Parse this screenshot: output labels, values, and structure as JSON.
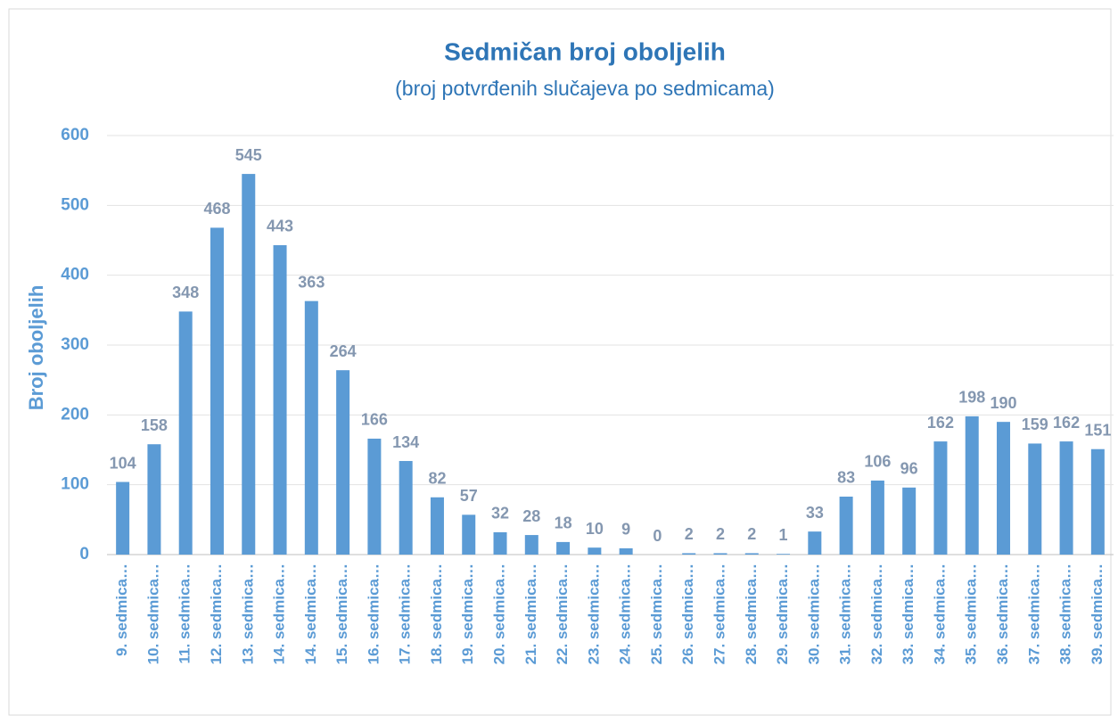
{
  "chart_data": {
    "type": "bar",
    "title": "Sedmičan broj oboljelih",
    "subtitle": "(broj potvrđenih slučajeva po sedmicama)",
    "y_label": "Broj oboljelih",
    "categories": [
      "9. sedmica…",
      "10. sedmica…",
      "11. sedmica…",
      "12. sedmica…",
      "13. sedmica…",
      "14. sedmica…",
      "14. sedmica…",
      "15. sedmica…",
      "16. sedmica…",
      "17. sedmica…",
      "18. sedmica…",
      "19. sedmica…",
      "20. sedmica…",
      "21. sedmica…",
      "22. sedmica…",
      "23. sedmica…",
      "24. sedmica…",
      "25. sedmica…",
      "26. sedmica…",
      "27. sedmica…",
      "28. sedmica…",
      "29. sedmica…",
      "30. sedmica…",
      "31. sedmica…",
      "32. sedmica…",
      "33. sedmica…",
      "34. sedmica…",
      "35. sedmica…",
      "36. sedmica…",
      "37. sedmica…",
      "38. sedmica…",
      "39. sedmica…"
    ],
    "values": [
      104,
      158,
      348,
      468,
      545,
      443,
      363,
      264,
      166,
      134,
      82,
      57,
      32,
      28,
      18,
      10,
      9,
      0,
      2,
      2,
      2,
      1,
      33,
      83,
      106,
      96,
      162,
      198,
      190,
      159,
      162,
      151
    ],
    "color": "#5b9bd5",
    "ylim": [
      0,
      600
    ],
    "yticks": [
      0,
      100,
      200,
      300,
      400,
      500,
      600
    ],
    "grid": true
  }
}
